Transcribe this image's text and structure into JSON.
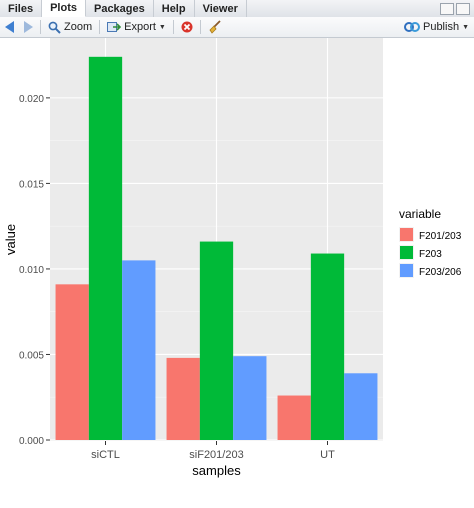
{
  "tabs": [
    "Files",
    "Plots",
    "Packages",
    "Help",
    "Viewer"
  ],
  "active_tab": "Plots",
  "toolbar": {
    "zoom_label": "Zoom",
    "export_label": "Export",
    "publish_label": "Publish"
  },
  "icons": {
    "back": "arrow-left-icon",
    "forward": "arrow-right-icon",
    "zoom": "magnifier-icon",
    "export": "export-icon",
    "remove": "remove-plot-icon",
    "clear": "broom-icon",
    "publish": "publish-icon"
  },
  "chart_data": {
    "type": "bar",
    "categories": [
      "siCTL",
      "siF201/203",
      "UT"
    ],
    "series": [
      {
        "name": "F201/203",
        "values": [
          0.0091,
          0.0048,
          0.0026
        ],
        "color": "#F8766D"
      },
      {
        "name": "F203",
        "values": [
          0.0224,
          0.0116,
          0.0109
        ],
        "color": "#00BA38"
      },
      {
        "name": "F203/206",
        "values": [
          0.0105,
          0.0049,
          0.0039
        ],
        "color": "#619CFF"
      }
    ],
    "xlabel": "samples",
    "ylabel": "value",
    "ylim": [
      0,
      0.0235
    ],
    "yticks": [
      "0.000",
      "0.005",
      "0.010",
      "0.015",
      "0.020"
    ],
    "ytick_values": [
      0,
      0.005,
      0.01,
      0.015,
      0.02
    ],
    "legend_title": "variable",
    "legend_position": "right",
    "grid": true,
    "panel_background": "#EBEBEB"
  }
}
